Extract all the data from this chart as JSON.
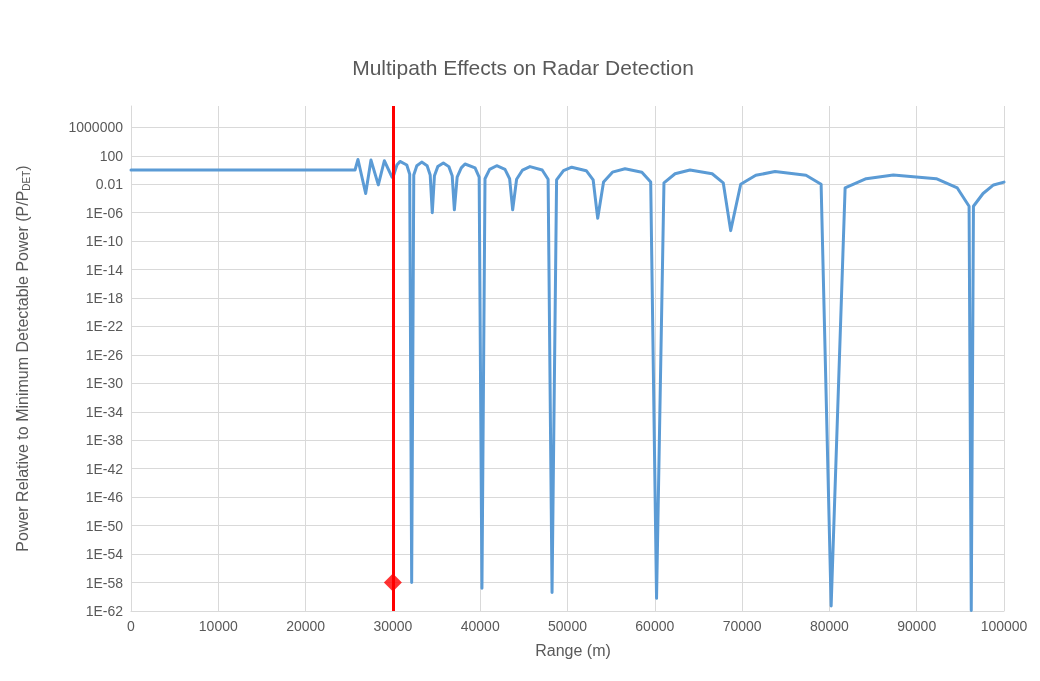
{
  "chart_data": {
    "type": "line",
    "title": "Multipath Effects on Radar Detection",
    "xlabel": "Range (m)",
    "ylabel": "Power Relative to Minimum Detectable Power (P/P$_{DET}$)",
    "log": "y",
    "grid": true,
    "line_style": "solid",
    "xlim": [
      0,
      100000
    ],
    "xticks": [
      0,
      10000,
      20000,
      30000,
      40000,
      50000,
      60000,
      70000,
      80000,
      90000,
      100000
    ],
    "ylim": [
      1e-62,
      1000000000.0
    ],
    "yticks": [
      {
        "value": 1000000,
        "label": "1000000"
      },
      {
        "value": 100,
        "label": "100"
      },
      {
        "value": 0.01,
        "label": "0.01"
      },
      {
        "value": 1e-06,
        "label": "1E-06"
      },
      {
        "value": 1e-10,
        "label": "1E-10"
      },
      {
        "value": 1e-14,
        "label": "1E-14"
      },
      {
        "value": 1e-18,
        "label": "1E-18"
      },
      {
        "value": 1e-22,
        "label": "1E-22"
      },
      {
        "value": 1e-26,
        "label": "1E-26"
      },
      {
        "value": 1e-30,
        "label": "1E-30"
      },
      {
        "value": 1e-34,
        "label": "1E-34"
      },
      {
        "value": 1e-38,
        "label": "1E-38"
      },
      {
        "value": 1e-42,
        "label": "1E-42"
      },
      {
        "value": 1e-46,
        "label": "1E-46"
      },
      {
        "value": 1e-50,
        "label": "1E-50"
      },
      {
        "value": 1e-54,
        "label": "1E-54"
      },
      {
        "value": 1e-58,
        "label": "1E-58"
      },
      {
        "value": 1e-62,
        "label": "1E-62"
      }
    ],
    "ref_lines": [
      {
        "axis": "x",
        "value": 30000,
        "color": "#ff0000"
      }
    ],
    "series": [
      {
        "color": "#5b9bd5",
        "marker": "none",
        "x": [
          0,
          25660,
          26000,
          26880,
          27490,
          28330,
          29020,
          29900,
          30125,
          30460,
          30810,
          31590,
          31925,
          32150,
          32390,
          32740,
          33300,
          33920,
          34270,
          34510,
          34760,
          35140,
          35780,
          36410,
          36790,
          37040,
          37360,
          37830,
          38260,
          39410,
          39880,
          40200,
          40550,
          41080,
          41890,
          42840,
          43370,
          43720,
          44170,
          44850,
          45700,
          47100,
          47780,
          48230,
          48750,
          49540,
          50480,
          52150,
          52940,
          53460,
          54130,
          55150,
          56590,
          58520,
          59530,
          60200,
          61050,
          62320,
          64030,
          66570,
          67840,
          68690,
          69840,
          71570,
          73770,
          77320,
          79050,
          80200,
          81800,
          84210,
          87320,
          92240,
          94650,
          96000,
          96250,
          96500,
          97600,
          98800,
          100000
        ],
        "values": [
          1,
          1,
          30,
          0.0005,
          25,
          0.008,
          20,
          0.1,
          0.25,
          5,
          16,
          5,
          0.25,
          1e-58,
          0.2,
          4,
          13,
          4,
          0.2,
          1e-06,
          0.16,
          3,
          10,
          3,
          0.16,
          2.5e-06,
          0.1,
          2,
          7,
          2,
          0.1,
          1.6e-59,
          0.06,
          1.2,
          4,
          1.2,
          0.06,
          2.5e-06,
          0.05,
          1,
          3,
          1,
          0.05,
          4e-60,
          0.04,
          0.8,
          2.5,
          0.8,
          0.04,
          1.6e-07,
          0.02,
          0.5,
          1.5,
          0.5,
          0.02,
          6e-61,
          0.016,
          0.3,
          1,
          0.3,
          0.016,
          3e-09,
          0.01,
          0.18,
          0.6,
          0.18,
          0.01,
          5e-62,
          0.003,
          0.06,
          0.2,
          0.06,
          0.003,
          8e-06,
          1.2e-62,
          8e-06,
          0.0005,
          0.008,
          0.02
        ]
      },
      {
        "type": "scatter",
        "color": "#ff0000",
        "marker": "diamond",
        "x": [
          30000
        ],
        "values": [
          1e-58
        ]
      }
    ]
  }
}
